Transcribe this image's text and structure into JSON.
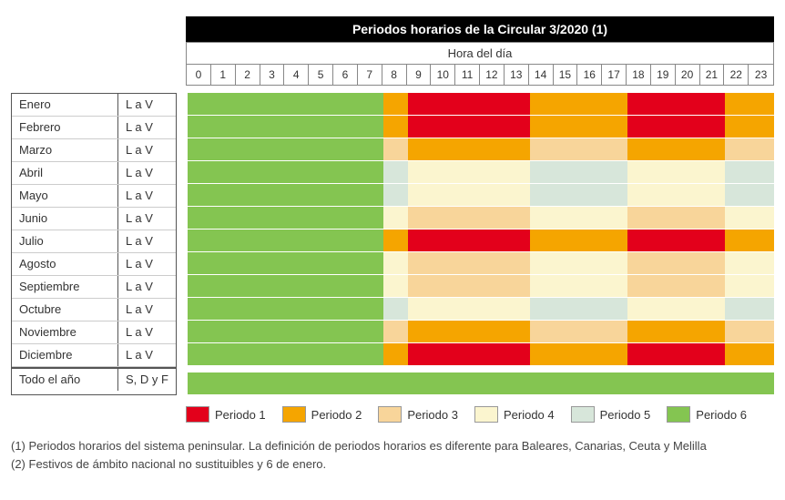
{
  "title": "Periodos horarios de la Circular 3/2020 (1)",
  "hour_header_label": "Hora del día",
  "hours": [
    "0",
    "1",
    "2",
    "3",
    "4",
    "5",
    "6",
    "7",
    "8",
    "9",
    "10",
    "11",
    "12",
    "13",
    "14",
    "15",
    "16",
    "17",
    "18",
    "19",
    "20",
    "21",
    "22",
    "23"
  ],
  "periods": {
    "p1": {
      "label": "Periodo 1",
      "color": "#e3001b"
    },
    "p2": {
      "label": "Periodo 2",
      "color": "#f5a500"
    },
    "p3": {
      "label": "Periodo 3",
      "color": "#f8d59a"
    },
    "p4": {
      "label": "Periodo 4",
      "color": "#fbf5cf"
    },
    "p5": {
      "label": "Periodo 5",
      "color": "#d7e6da"
    },
    "p6": {
      "label": "Periodo 6",
      "color": "#84c551"
    }
  },
  "legend_order": [
    "p1",
    "p2",
    "p3",
    "p4",
    "p5",
    "p6"
  ],
  "rows": [
    {
      "month": "Enero",
      "days": "L a V",
      "map": [
        "p6",
        "p6",
        "p6",
        "p6",
        "p6",
        "p6",
        "p6",
        "p6",
        "p2",
        "p1",
        "p1",
        "p1",
        "p1",
        "p1",
        "p2",
        "p2",
        "p2",
        "p2",
        "p1",
        "p1",
        "p1",
        "p1",
        "p2",
        "p2"
      ]
    },
    {
      "month": "Febrero",
      "days": "L a V",
      "map": [
        "p6",
        "p6",
        "p6",
        "p6",
        "p6",
        "p6",
        "p6",
        "p6",
        "p2",
        "p1",
        "p1",
        "p1",
        "p1",
        "p1",
        "p2",
        "p2",
        "p2",
        "p2",
        "p1",
        "p1",
        "p1",
        "p1",
        "p2",
        "p2"
      ]
    },
    {
      "month": "Marzo",
      "days": "L a V",
      "map": [
        "p6",
        "p6",
        "p6",
        "p6",
        "p6",
        "p6",
        "p6",
        "p6",
        "p3",
        "p2",
        "p2",
        "p2",
        "p2",
        "p2",
        "p3",
        "p3",
        "p3",
        "p3",
        "p2",
        "p2",
        "p2",
        "p2",
        "p3",
        "p3"
      ]
    },
    {
      "month": "Abril",
      "days": "L a V",
      "map": [
        "p6",
        "p6",
        "p6",
        "p6",
        "p6",
        "p6",
        "p6",
        "p6",
        "p5",
        "p4",
        "p4",
        "p4",
        "p4",
        "p4",
        "p5",
        "p5",
        "p5",
        "p5",
        "p4",
        "p4",
        "p4",
        "p4",
        "p5",
        "p5"
      ]
    },
    {
      "month": "Mayo",
      "days": "L a V",
      "map": [
        "p6",
        "p6",
        "p6",
        "p6",
        "p6",
        "p6",
        "p6",
        "p6",
        "p5",
        "p4",
        "p4",
        "p4",
        "p4",
        "p4",
        "p5",
        "p5",
        "p5",
        "p5",
        "p4",
        "p4",
        "p4",
        "p4",
        "p5",
        "p5"
      ]
    },
    {
      "month": "Junio",
      "days": "L a V",
      "map": [
        "p6",
        "p6",
        "p6",
        "p6",
        "p6",
        "p6",
        "p6",
        "p6",
        "p4",
        "p3",
        "p3",
        "p3",
        "p3",
        "p3",
        "p4",
        "p4",
        "p4",
        "p4",
        "p3",
        "p3",
        "p3",
        "p3",
        "p4",
        "p4"
      ]
    },
    {
      "month": "Julio",
      "days": "L a V",
      "map": [
        "p6",
        "p6",
        "p6",
        "p6",
        "p6",
        "p6",
        "p6",
        "p6",
        "p2",
        "p1",
        "p1",
        "p1",
        "p1",
        "p1",
        "p2",
        "p2",
        "p2",
        "p2",
        "p1",
        "p1",
        "p1",
        "p1",
        "p2",
        "p2"
      ]
    },
    {
      "month": "Agosto",
      "days": "L a V",
      "map": [
        "p6",
        "p6",
        "p6",
        "p6",
        "p6",
        "p6",
        "p6",
        "p6",
        "p4",
        "p3",
        "p3",
        "p3",
        "p3",
        "p3",
        "p4",
        "p4",
        "p4",
        "p4",
        "p3",
        "p3",
        "p3",
        "p3",
        "p4",
        "p4"
      ]
    },
    {
      "month": "Septiembre",
      "days": "L a V",
      "map": [
        "p6",
        "p6",
        "p6",
        "p6",
        "p6",
        "p6",
        "p6",
        "p6",
        "p4",
        "p3",
        "p3",
        "p3",
        "p3",
        "p3",
        "p4",
        "p4",
        "p4",
        "p4",
        "p3",
        "p3",
        "p3",
        "p3",
        "p4",
        "p4"
      ]
    },
    {
      "month": "Octubre",
      "days": "L a V",
      "map": [
        "p6",
        "p6",
        "p6",
        "p6",
        "p6",
        "p6",
        "p6",
        "p6",
        "p5",
        "p4",
        "p4",
        "p4",
        "p4",
        "p4",
        "p5",
        "p5",
        "p5",
        "p5",
        "p4",
        "p4",
        "p4",
        "p4",
        "p5",
        "p5"
      ]
    },
    {
      "month": "Noviembre",
      "days": "L a V",
      "map": [
        "p6",
        "p6",
        "p6",
        "p6",
        "p6",
        "p6",
        "p6",
        "p6",
        "p3",
        "p2",
        "p2",
        "p2",
        "p2",
        "p2",
        "p3",
        "p3",
        "p3",
        "p3",
        "p2",
        "p2",
        "p2",
        "p2",
        "p3",
        "p3"
      ]
    },
    {
      "month": "Diciembre",
      "days": "L a V",
      "map": [
        "p6",
        "p6",
        "p6",
        "p6",
        "p6",
        "p6",
        "p6",
        "p6",
        "p2",
        "p1",
        "p1",
        "p1",
        "p1",
        "p1",
        "p2",
        "p2",
        "p2",
        "p2",
        "p1",
        "p1",
        "p1",
        "p1",
        "p2",
        "p2"
      ]
    }
  ],
  "allYear": {
    "month": "Todo el año",
    "days": "S, D y F",
    "map": [
      "p6",
      "p6",
      "p6",
      "p6",
      "p6",
      "p6",
      "p6",
      "p6",
      "p6",
      "p6",
      "p6",
      "p6",
      "p6",
      "p6",
      "p6",
      "p6",
      "p6",
      "p6",
      "p6",
      "p6",
      "p6",
      "p6",
      "p6",
      "p6"
    ]
  },
  "footnotes": [
    "(1) Periodos horarios del sistema peninsular. La definición de periodos horarios es diferente para Baleares, Canarias, Ceuta y Melilla",
    "(2) Festivos de ámbito nacional no sustituibles y 6 de enero."
  ]
}
